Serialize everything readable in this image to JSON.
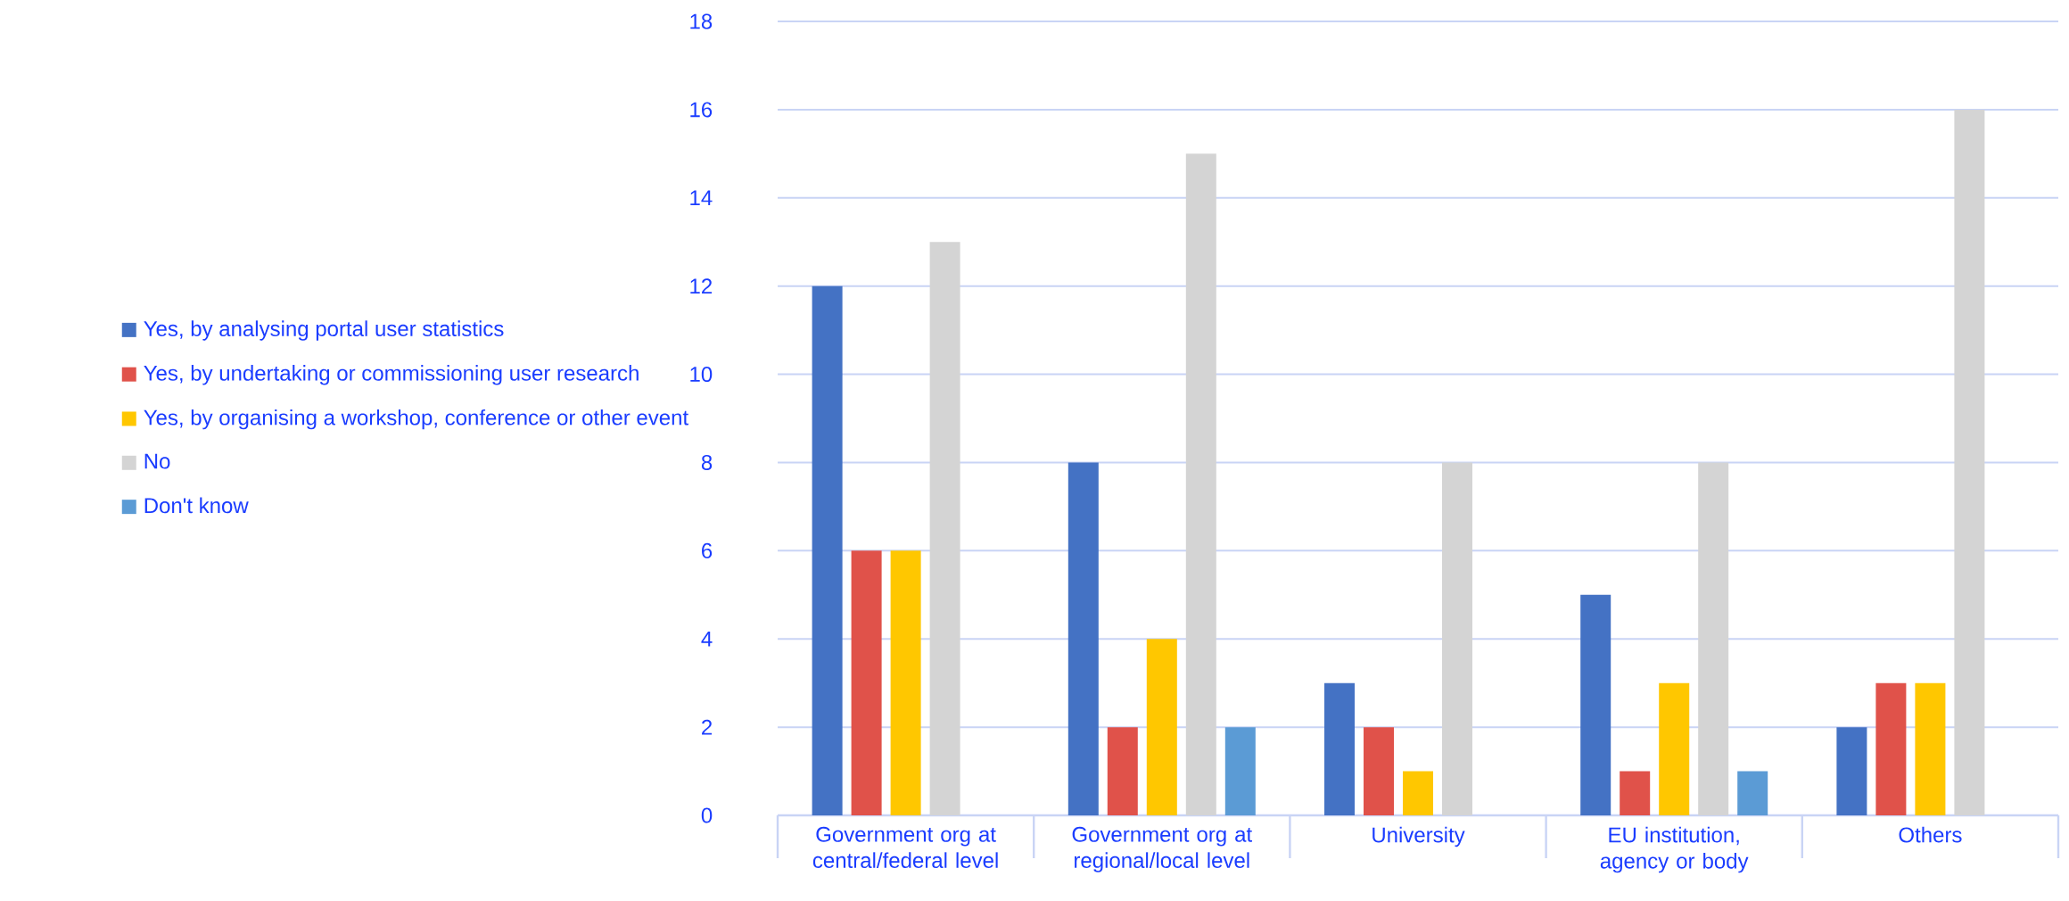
{
  "chart_data": {
    "type": "bar",
    "categories": [
      "Government org at central/federal level",
      "Government org at regional/local level",
      "University",
      "EU institution, agency or body",
      "Others"
    ],
    "series": [
      {
        "name": "Yes, by analysing portal user statistics",
        "color": "#4472c4",
        "values": [
          12,
          8,
          3,
          5,
          2
        ]
      },
      {
        "name": "Yes, by undertaking or commissioning user research",
        "color": "#e0524a",
        "values": [
          6,
          2,
          2,
          1,
          3
        ]
      },
      {
        "name": "Yes, by organising a workshop, conference or other event",
        "color": "#ffc700",
        "values": [
          6,
          4,
          1,
          3,
          3
        ]
      },
      {
        "name": "No",
        "color": "#d4d4d4",
        "values": [
          13,
          15,
          8,
          8,
          16
        ]
      },
      {
        "name": "Don't know",
        "color": "#5b9bd5",
        "values": [
          0,
          2,
          0,
          1,
          0
        ]
      }
    ],
    "ylim": [
      0,
      18
    ],
    "yticks": [
      0,
      2,
      4,
      6,
      8,
      10,
      12,
      14,
      16,
      18
    ],
    "grid": "y",
    "legend": "left"
  }
}
